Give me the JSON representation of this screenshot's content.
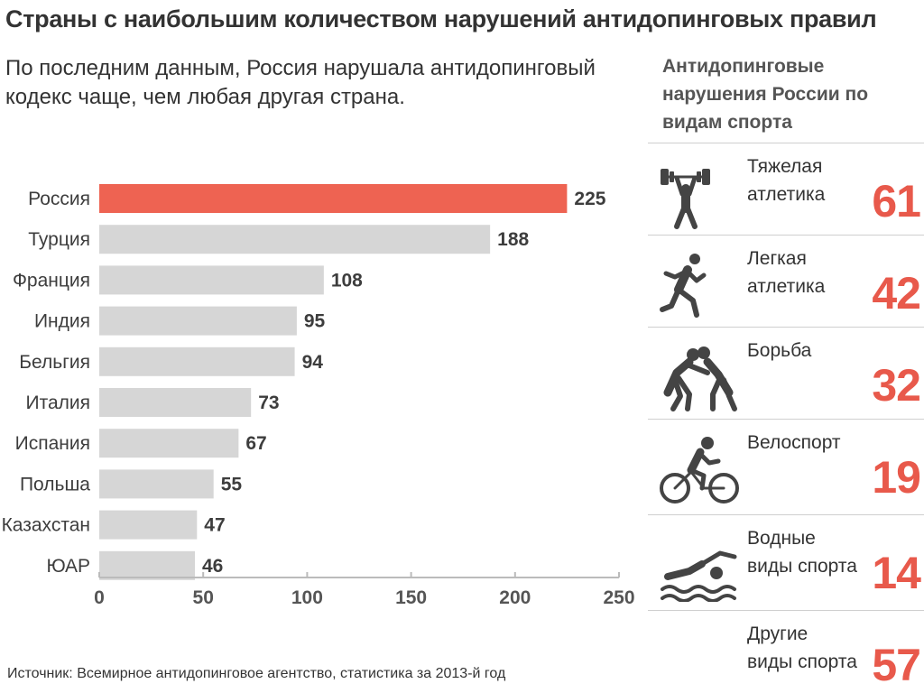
{
  "title": "Страны с наибольшим количеством нарушений антидопинговых правил",
  "subtitle": "По последним данным, Россия нарушала антидопинговый кодекс чаще, чем любая другая страна.",
  "source": "Источник: Всемирное антидопинговое агентство, статистика за 2013-й год",
  "colors": {
    "highlight": "#ee6352",
    "bar": "#d6d6d6",
    "accent_text": "#e8594b",
    "icon": "#444444"
  },
  "chart_data": {
    "type": "bar",
    "orientation": "horizontal",
    "categories": [
      "Россия",
      "Турция",
      "Франция",
      "Индия",
      "Бельгия",
      "Италия",
      "Испания",
      "Польша",
      "Казахстан",
      "ЮАР"
    ],
    "values": [
      225,
      188,
      108,
      95,
      94,
      73,
      67,
      55,
      47,
      46
    ],
    "highlight_index": 0,
    "xlim": [
      0,
      250
    ],
    "xticks": [
      0,
      50,
      100,
      150,
      200,
      250
    ],
    "grid": false,
    "xlabel": "",
    "ylabel": ""
  },
  "sports_panel": {
    "title": "Антидопинговые нарушения России по видам спорта",
    "items": [
      {
        "name": "Тяжелая атлетика",
        "value": "61",
        "icon": "weightlifting-icon"
      },
      {
        "name": "Легкая атлетика",
        "value": "42",
        "icon": "running-icon"
      },
      {
        "name": "Борьба",
        "value": "32",
        "icon": "wrestling-icon"
      },
      {
        "name": "Велоспорт",
        "value": "19",
        "icon": "cycling-icon"
      },
      {
        "name": "Водные виды спорта",
        "value": "14",
        "icon": "swimming-icon"
      },
      {
        "name": "Другие виды спорта",
        "value": "57",
        "icon": ""
      }
    ]
  }
}
